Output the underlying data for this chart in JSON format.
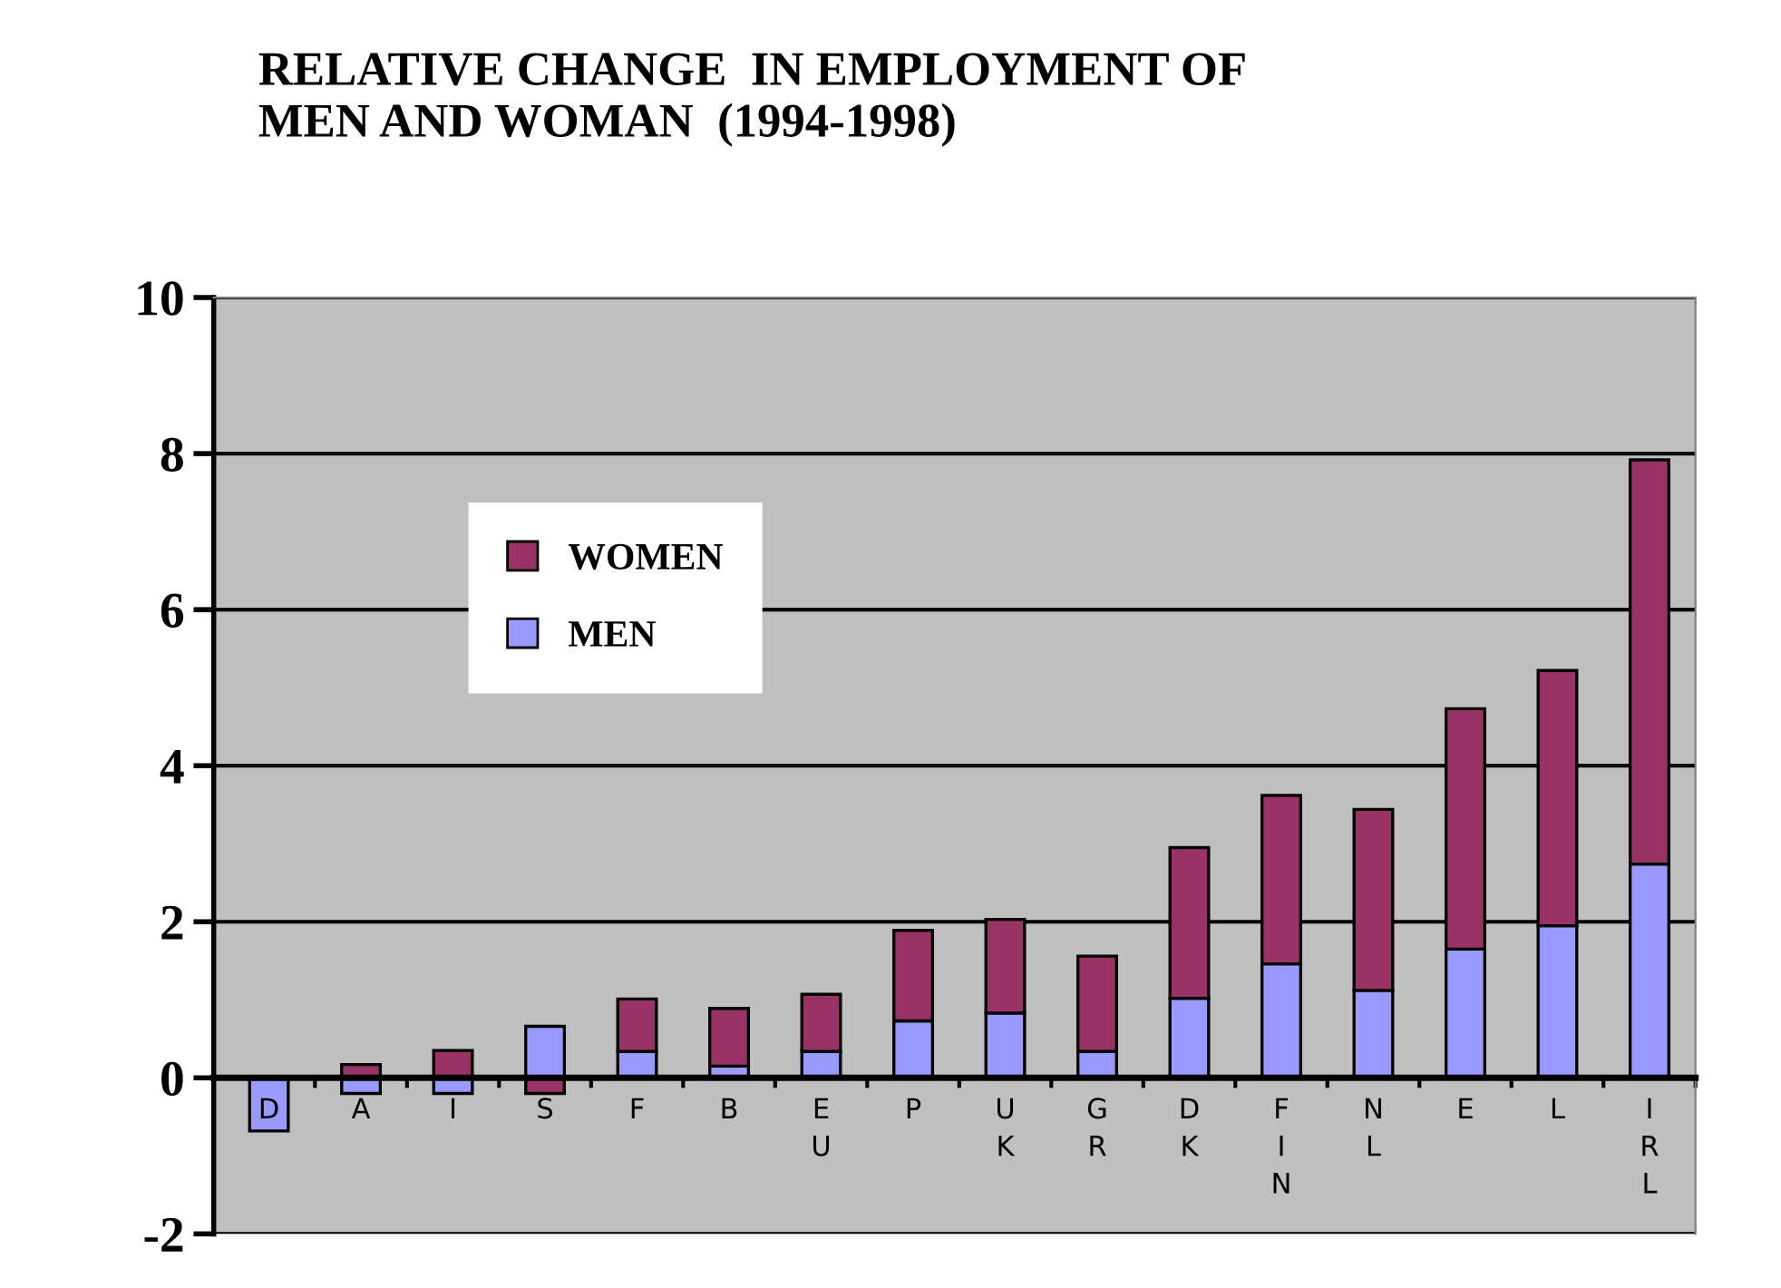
{
  "chart_data": {
    "type": "bar",
    "stacked": true,
    "title": "RELATIVE CHANGE  IN EMPLOYMENT OF\nMEN AND WOMAN  (1994-1998)",
    "categories": [
      "D",
      "A",
      "I",
      "S",
      "F",
      "B",
      "EU",
      "P",
      "UK",
      "GR",
      "DK",
      "FIN",
      "NL",
      "E",
      "L",
      "IRL"
    ],
    "series": [
      {
        "name": "MEN",
        "color": "#9999ff",
        "values": [
          -0.68,
          -0.2,
          -0.2,
          0.66,
          0.34,
          0.15,
          0.34,
          0.73,
          0.83,
          0.34,
          1.02,
          1.46,
          1.12,
          1.65,
          1.95,
          2.74
        ]
      },
      {
        "name": "WOMEN",
        "color": "#993366",
        "values": [
          null,
          0.17,
          0.35,
          -0.2,
          0.67,
          0.74,
          0.73,
          1.16,
          1.2,
          1.22,
          1.93,
          2.16,
          2.32,
          3.08,
          3.27,
          5.18
        ]
      }
    ],
    "ylim": [
      -2,
      10
    ],
    "yticks": [
      -2,
      0,
      2,
      4,
      6,
      8,
      10
    ],
    "grid": "y",
    "legend": "top left"
  }
}
